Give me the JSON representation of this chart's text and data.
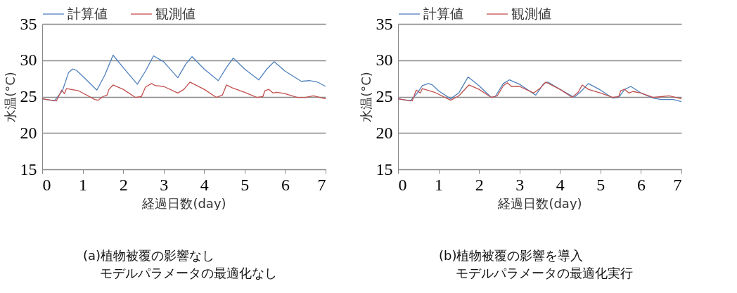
{
  "chart_data": [
    {
      "type": "line",
      "xlabel": "経過日数(day)",
      "ylabel": "水温(°C)",
      "xlim": [
        0,
        7
      ],
      "xticks": [
        0,
        1,
        2,
        3,
        4,
        5,
        6,
        7
      ],
      "ylim": [
        15,
        35
      ],
      "yticks": [
        15,
        20,
        25,
        30,
        35
      ],
      "grid": "y",
      "legend": "top",
      "annotations": [
        "(a)植物被覆の影響なし",
        "モデルパラメータの最適化なし"
      ],
      "series": [
        {
          "name": "計算値",
          "color": "#4f81bd",
          "x": [
            0,
            0.3,
            0.5,
            0.65,
            0.75,
            0.85,
            1.0,
            1.35,
            1.55,
            1.75,
            2.0,
            2.35,
            2.55,
            2.75,
            3.0,
            3.35,
            3.55,
            3.7,
            4.0,
            4.35,
            4.55,
            4.72,
            5.0,
            5.35,
            5.55,
            5.73,
            6.0,
            6.4,
            6.6,
            6.8,
            7.0
          ],
          "values": [
            24.7,
            24.4,
            25.8,
            28.3,
            28.8,
            28.6,
            27.8,
            25.9,
            28.0,
            30.7,
            29.0,
            26.7,
            28.5,
            30.6,
            29.8,
            27.6,
            29.5,
            30.5,
            28.8,
            27.2,
            29.0,
            30.3,
            28.8,
            27.3,
            28.8,
            29.8,
            28.5,
            27.1,
            27.2,
            27.0,
            26.4
          ]
        },
        {
          "name": "観測値",
          "color": "#c0504d",
          "x": [
            0,
            0.35,
            0.48,
            0.55,
            0.6,
            0.9,
            1.3,
            1.38,
            1.5,
            1.6,
            1.65,
            1.75,
            2.0,
            2.3,
            2.45,
            2.55,
            2.7,
            2.8,
            3.0,
            3.35,
            3.5,
            3.65,
            4.0,
            4.3,
            4.45,
            4.55,
            4.7,
            5.0,
            5.3,
            5.45,
            5.5,
            5.6,
            5.7,
            5.8,
            6.0,
            6.3,
            6.5,
            6.7,
            7.0
          ],
          "values": [
            24.7,
            24.4,
            25.9,
            25.4,
            26.1,
            25.8,
            24.6,
            24.5,
            25.0,
            25.2,
            26.0,
            26.6,
            26.0,
            24.9,
            25.0,
            26.3,
            26.8,
            26.5,
            26.4,
            25.5,
            26.0,
            27.0,
            26.0,
            24.9,
            25.2,
            26.6,
            26.2,
            25.6,
            24.9,
            25.0,
            25.8,
            26.0,
            25.5,
            25.6,
            25.4,
            24.9,
            24.9,
            25.1,
            24.7
          ]
        }
      ]
    },
    {
      "type": "line",
      "xlabel": "経過日数(day)",
      "ylabel": "水温(°C)",
      "xlim": [
        0,
        7
      ],
      "xticks": [
        0,
        1,
        2,
        3,
        4,
        5,
        6,
        7
      ],
      "ylim": [
        15,
        35
      ],
      "yticks": [
        15,
        20,
        25,
        30,
        35
      ],
      "grid": "y",
      "legend": "top",
      "annotations": [
        "(b)植物被覆の影響を導入",
        "モデルパラメータの最適化実行"
      ],
      "series": [
        {
          "name": "計算値",
          "color": "#4f81bd",
          "x": [
            0,
            0.3,
            0.45,
            0.6,
            0.75,
            0.85,
            1.0,
            1.3,
            1.5,
            1.73,
            2.0,
            2.3,
            2.4,
            2.6,
            2.75,
            3.0,
            3.4,
            3.6,
            3.7,
            4.0,
            4.35,
            4.5,
            4.7,
            5.0,
            5.3,
            5.45,
            5.6,
            5.75,
            6.0,
            6.3,
            6.5,
            6.8,
            7.0
          ],
          "values": [
            24.7,
            24.4,
            25.3,
            26.5,
            26.8,
            26.6,
            25.8,
            24.7,
            25.5,
            27.7,
            26.5,
            24.9,
            25.0,
            26.8,
            27.3,
            26.7,
            25.2,
            26.8,
            27.0,
            26.0,
            24.9,
            25.6,
            26.8,
            25.9,
            24.8,
            24.9,
            26.0,
            26.4,
            25.5,
            24.8,
            24.6,
            24.6,
            24.3
          ]
        },
        {
          "name": "観測値",
          "color": "#c0504d",
          "x": [
            0,
            0.35,
            0.45,
            0.55,
            0.6,
            0.9,
            1.3,
            1.5,
            1.75,
            2.0,
            2.3,
            2.45,
            2.6,
            2.7,
            2.8,
            3.0,
            3.35,
            3.5,
            3.65,
            4.0,
            4.3,
            4.45,
            4.55,
            4.7,
            5.0,
            5.3,
            5.45,
            5.5,
            5.6,
            5.7,
            5.8,
            6.0,
            6.3,
            6.5,
            6.7,
            7.0
          ],
          "values": [
            24.7,
            24.4,
            25.9,
            25.5,
            26.1,
            25.6,
            24.5,
            25.1,
            26.6,
            26.0,
            24.9,
            25.1,
            26.5,
            26.9,
            26.4,
            26.4,
            25.5,
            26.1,
            27.0,
            26.0,
            24.9,
            25.6,
            26.6,
            26.0,
            25.5,
            24.9,
            25.0,
            25.8,
            26.0,
            25.5,
            25.7,
            25.5,
            24.9,
            25.0,
            25.1,
            24.7
          ]
        }
      ]
    }
  ]
}
